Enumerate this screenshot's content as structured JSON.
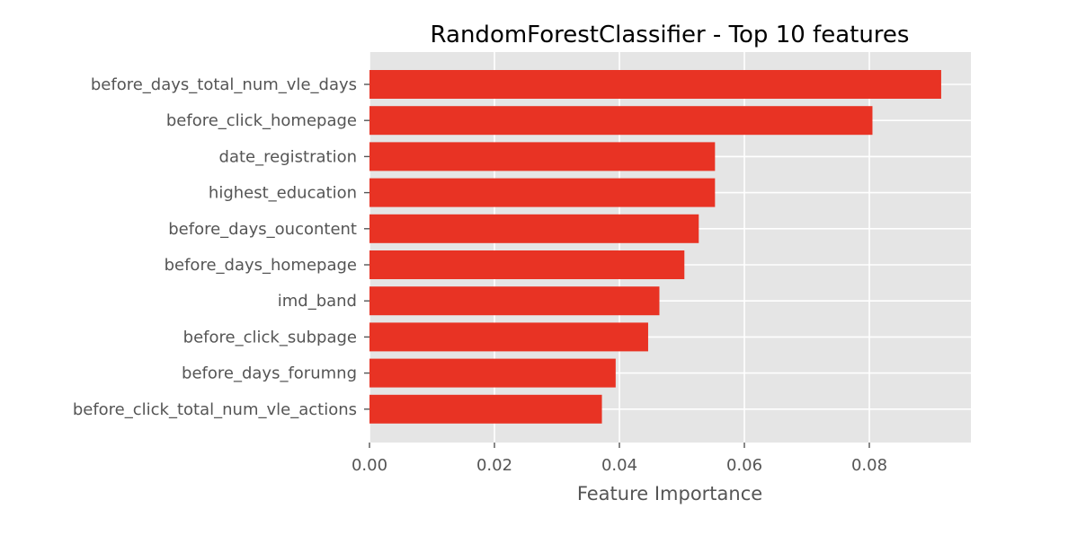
{
  "chart_data": {
    "type": "bar",
    "orientation": "horizontal",
    "title": "RandomForestClassifier - Top 10 features",
    "xlabel": "Feature Importance",
    "ylabel": "",
    "categories": [
      "before_days_total_num_vle_days",
      "before_click_homepage",
      "date_registration",
      "highest_education",
      "before_days_oucontent",
      "before_days_homepage",
      "imd_band",
      "before_click_subpage",
      "before_days_forumng",
      "before_click_total_num_vle_actions"
    ],
    "values": [
      0.0915,
      0.0805,
      0.0553,
      0.0553,
      0.0527,
      0.0504,
      0.0464,
      0.0446,
      0.0394,
      0.0372
    ],
    "xlim": [
      0,
      0.096
    ],
    "xticks": [
      0.0,
      0.02,
      0.04,
      0.06,
      0.08
    ],
    "xtick_labels": [
      "0.00",
      "0.02",
      "0.04",
      "0.06",
      "0.08"
    ],
    "grid": true,
    "colors": {
      "bar": "#E83324",
      "background": "#E5E5E5",
      "grid": "#FFFFFF"
    }
  }
}
